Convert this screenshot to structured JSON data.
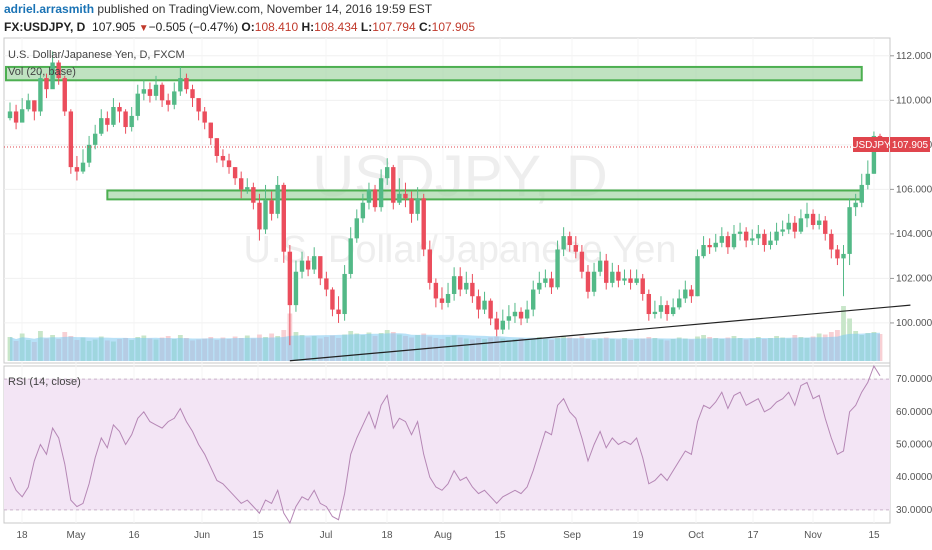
{
  "header": {
    "author": "adriel.arrasmith",
    "published": "published on TradingView.com, November 14, 2016 19:59 EST",
    "symbol": "FX:USDJPY, D",
    "last": "107.905",
    "change": "−0.505 (−0.47%)",
    "o_label": "O:",
    "o": "108.410",
    "h_label": "H:",
    "h": "108.434",
    "l_label": "L:",
    "l": "107.794",
    "c_label": "C:",
    "c": "107.905"
  },
  "price_pane": {
    "legend": "U.S. Dollar/Japanese Yen, D, FXCM",
    "volume_legend": "Vol (20, base)",
    "watermark_symbol": "USDJPY, D",
    "watermark_name": "U.S. Dollar/Japanese Yen",
    "price_tag_symbol": "USDJPY",
    "price_tag_value": "107.905"
  },
  "rsi_pane": {
    "legend": "RSI (14, close)"
  },
  "colors": {
    "up": "#53b987",
    "down": "#eb4d5c",
    "zone_fill": "#a5d6a7",
    "zone_border": "#4caf50",
    "volume": "#7ec8f0",
    "rsi_band": "#f3e5f5",
    "rsi_line": "#b587b5",
    "last_price": "#e0454d"
  },
  "chart_data": [
    {
      "type": "candlestick",
      "title": "U.S. Dollar/Japanese Yen, D, FXCM",
      "y_ticks": [
        "112.000",
        "110.000",
        "108.000",
        "106.000",
        "104.000",
        "102.000",
        "100.000"
      ],
      "ylim": [
        98.2,
        112.8
      ],
      "x_ticks": [
        "18",
        "May",
        "16",
        "Jun",
        "15",
        "Jul",
        "18",
        "Aug",
        "15",
        "Sep",
        "19",
        "Oct",
        "17",
        "Nov",
        "15"
      ],
      "last_price": 107.905,
      "closes": [
        109.5,
        109.0,
        109.6,
        110.0,
        109.5,
        111.0,
        110.5,
        111.7,
        111.0,
        109.5,
        107.0,
        106.8,
        107.2,
        108.0,
        108.5,
        109.2,
        108.9,
        109.7,
        109.5,
        108.8,
        109.3,
        110.3,
        110.5,
        110.2,
        110.7,
        110.0,
        109.8,
        110.4,
        111.0,
        110.5,
        110.1,
        109.5,
        109.0,
        108.3,
        107.5,
        107.3,
        107.0,
        106.5,
        106.0,
        106.1,
        105.4,
        104.2,
        105.5,
        104.9,
        106.2,
        103.2,
        100.8,
        102.3,
        102.8,
        102.4,
        103.0,
        102.0,
        101.5,
        100.6,
        100.4,
        102.2,
        103.8,
        104.7,
        105.4,
        106.0,
        105.2,
        106.5,
        107.0,
        105.4,
        105.8,
        105.6,
        104.9,
        105.6,
        103.3,
        101.8,
        101.1,
        100.9,
        101.3,
        102.1,
        101.5,
        101.8,
        101.2,
        100.6,
        101.0,
        100.2,
        99.7,
        100.1,
        100.3,
        100.5,
        100.2,
        100.6,
        101.5,
        101.8,
        102.0,
        101.6,
        103.3,
        103.9,
        103.5,
        103.2,
        102.3,
        101.4,
        102.3,
        102.8,
        101.8,
        102.3,
        101.9,
        102.0,
        101.8,
        102.0,
        101.3,
        100.4,
        100.5,
        100.8,
        100.4,
        100.7,
        101.1,
        101.5,
        101.2,
        103.0,
        103.5,
        103.4,
        103.6,
        103.9,
        103.4,
        104.0,
        104.1,
        103.7,
        103.8,
        104.0,
        103.5,
        103.7,
        104.1,
        104.2,
        104.5,
        104.1,
        104.7,
        104.9,
        104.4,
        104.6,
        104.0,
        103.3,
        102.9,
        103.1,
        105.2,
        105.4,
        106.2,
        106.7,
        108.4,
        107.9
      ],
      "highs": [
        109.9,
        109.8,
        110.1,
        110.3,
        110.0,
        111.3,
        111.2,
        112.2,
        111.8,
        111.1,
        109.6,
        107.5,
        107.8,
        108.4,
        108.9,
        109.6,
        109.5,
        110.1,
        109.9,
        109.6,
        109.7,
        110.7,
        110.9,
        110.8,
        111.1,
        110.8,
        110.3,
        110.8,
        111.5,
        111.2,
        110.7,
        110.0,
        109.7,
        109.0,
        108.3,
        107.8,
        107.6,
        107.0,
        106.8,
        106.5,
        106.3,
        105.8,
        106.2,
        105.9,
        106.6,
        106.3,
        103.5,
        102.8,
        103.2,
        103.0,
        103.4,
        102.8,
        102.3,
        101.6,
        101.2,
        102.6,
        104.3,
        105.1,
        105.8,
        106.3,
        106.2,
        106.9,
        107.4,
        107.1,
        106.5,
        106.3,
        105.9,
        106.1,
        105.8,
        103.7,
        102.0,
        101.6,
        101.8,
        102.5,
        102.5,
        102.3,
        102.2,
        101.5,
        101.4,
        101.1,
        100.5,
        100.6,
        100.8,
        100.9,
        100.7,
        101.0,
        101.9,
        102.3,
        102.4,
        102.3,
        103.7,
        104.3,
        104.1,
        103.9,
        103.5,
        102.6,
        102.7,
        103.2,
        103.1,
        102.7,
        102.6,
        102.4,
        102.4,
        102.4,
        102.2,
        101.5,
        101.0,
        101.2,
        101.0,
        101.1,
        101.5,
        101.9,
        101.7,
        103.3,
        103.9,
        103.8,
        104.0,
        104.3,
        104.1,
        104.4,
        104.5,
        104.3,
        104.2,
        104.4,
        104.2,
        104.1,
        104.5,
        104.6,
        104.9,
        104.8,
        105.1,
        105.4,
        105.1,
        104.9,
        104.8,
        104.2,
        103.5,
        103.5,
        105.6,
        105.8,
        106.7,
        107.3,
        108.6,
        108.5
      ],
      "lows": [
        109.1,
        108.7,
        109.1,
        109.5,
        109.1,
        109.3,
        110.1,
        110.8,
        110.7,
        109.3,
        106.7,
        106.4,
        106.7,
        107.0,
        107.8,
        108.4,
        108.6,
        108.8,
        109.0,
        108.5,
        108.6,
        109.1,
        110.0,
        109.9,
        110.0,
        109.7,
        109.5,
        109.6,
        110.2,
        110.3,
        109.7,
        109.1,
        108.7,
        108.0,
        107.2,
        107.0,
        106.7,
        106.2,
        105.6,
        105.8,
        105.1,
        103.7,
        104.0,
        104.6,
        104.7,
        102.7,
        99.0,
        100.5,
        102.0,
        102.1,
        102.2,
        101.7,
        101.2,
        100.3,
        100.0,
        100.1,
        102.0,
        103.6,
        104.5,
        105.1,
        105.0,
        105.0,
        106.2,
        105.1,
        105.3,
        105.2,
        104.5,
        104.6,
        103.0,
        101.5,
        100.7,
        100.6,
        100.7,
        101.0,
        101.2,
        101.3,
        100.9,
        100.2,
        100.4,
        99.9,
        99.4,
        99.5,
        99.7,
        100.0,
        99.9,
        100.0,
        100.3,
        101.3,
        101.6,
        101.3,
        101.5,
        103.0,
        103.2,
        102.9,
        102.0,
        101.1,
        101.2,
        102.1,
        101.5,
        101.6,
        101.6,
        101.7,
        101.5,
        101.7,
        101.0,
        100.1,
        100.2,
        100.2,
        100.1,
        100.3,
        100.6,
        100.9,
        100.9,
        101.2,
        102.9,
        103.1,
        103.2,
        103.4,
        103.1,
        103.3,
        103.7,
        103.4,
        103.5,
        103.5,
        103.2,
        103.3,
        103.5,
        103.9,
        104.0,
        103.8,
        104.0,
        104.3,
        104.2,
        104.2,
        103.7,
        102.9,
        102.6,
        101.2,
        102.6,
        104.8,
        105.2,
        106.0,
        106.7,
        107.8
      ],
      "volumes": [
        48,
        40,
        55,
        42,
        38,
        60,
        45,
        52,
        44,
        58,
        50,
        42,
        47,
        40,
        43,
        49,
        41,
        39,
        44,
        46,
        42,
        48,
        51,
        45,
        43,
        47,
        50,
        44,
        52,
        46,
        41,
        43,
        45,
        48,
        42,
        47,
        44,
        49,
        46,
        51,
        45,
        53,
        48,
        55,
        50,
        62,
        95,
        58,
        52,
        47,
        50,
        45,
        48,
        51,
        46,
        53,
        60,
        55,
        52,
        57,
        50,
        56,
        62,
        58,
        53,
        50,
        47,
        52,
        55,
        49,
        46,
        44,
        48,
        51,
        47,
        45,
        43,
        46,
        44,
        47,
        49,
        45,
        42,
        44,
        46,
        43,
        45,
        48,
        44,
        42,
        46,
        50,
        47,
        45,
        49,
        44,
        42,
        45,
        47,
        44,
        43,
        46,
        42,
        44,
        45,
        48,
        46,
        43,
        41,
        44,
        47,
        45,
        43,
        49,
        52,
        48,
        46,
        44,
        47,
        50,
        46,
        43,
        45,
        48,
        44,
        46,
        50,
        47,
        45,
        52,
        48,
        46,
        49,
        55,
        53,
        58,
        62,
        110,
        85,
        60,
        52,
        56,
        58,
        54
      ],
      "annotations": [
        {
          "type": "zone",
          "y_range": [
            110.9,
            111.5
          ]
        },
        {
          "type": "zone",
          "y_range": [
            105.55,
            105.95
          ]
        },
        {
          "type": "trendline",
          "from": [
            46,
            98.3
          ],
          "to": [
            148,
            100.8
          ]
        }
      ]
    },
    {
      "type": "line",
      "title": "RSI (14, close)",
      "y_ticks": [
        "70.0000",
        "60.0000",
        "50.0000",
        "40.0000",
        "30.0000"
      ],
      "ylim": [
        26,
        74
      ],
      "bands": [
        30,
        70
      ],
      "values": [
        40,
        36,
        34,
        37,
        45,
        50,
        47,
        55,
        52,
        44,
        33,
        31,
        32,
        38,
        46,
        52,
        49,
        56,
        54,
        50,
        53,
        58,
        60,
        57,
        56,
        55,
        57,
        58,
        61,
        57,
        54,
        50,
        47,
        43,
        39,
        38,
        36,
        34,
        32,
        33,
        31,
        29,
        33,
        32,
        36,
        29,
        26,
        31,
        34,
        33,
        36,
        32,
        31,
        28,
        27,
        35,
        47,
        52,
        56,
        60,
        55,
        62,
        65,
        55,
        58,
        57,
        53,
        57,
        47,
        40,
        37,
        36,
        38,
        42,
        39,
        40,
        37,
        35,
        36,
        34,
        32,
        34,
        35,
        36,
        35,
        37,
        42,
        48,
        54,
        53,
        62,
        64,
        60,
        58,
        52,
        45,
        50,
        54,
        49,
        52,
        50,
        51,
        50,
        52,
        46,
        38,
        39,
        41,
        39,
        42,
        45,
        48,
        47,
        57,
        62,
        61,
        63,
        66,
        61,
        65,
        66,
        62,
        63,
        64,
        60,
        61,
        63,
        64,
        66,
        62,
        68,
        69,
        64,
        65,
        58,
        52,
        47,
        48,
        60,
        62,
        66,
        69,
        74,
        71
      ]
    }
  ]
}
